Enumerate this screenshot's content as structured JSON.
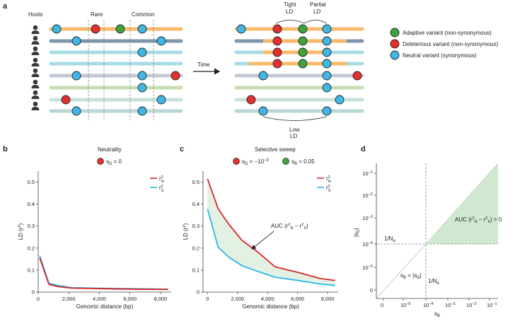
{
  "panel_a": {
    "letter": "a",
    "hosts_label": "Hosts",
    "rare_label": "Rare",
    "common_label": "Common",
    "time_label": "Time",
    "tight_ld": [
      "Tight",
      "LD"
    ],
    "partial_ld": [
      "Partial",
      "LD"
    ],
    "low_ld": [
      "Low",
      "LD"
    ],
    "legend": [
      {
        "label": "Adaptive variant (non-synonymous)",
        "color": "#3fa33f"
      },
      {
        "label": "Deleterious variant (non-synonymous)",
        "color": "#e03030"
      },
      {
        "label": "Neutral variant (synonymous)",
        "color": "#3fb6e3"
      }
    ],
    "colors": {
      "orange": "#f7b96a",
      "slate": "#8096ad",
      "lightblue": "#a7dbe4",
      "lightgreen": "#c7ddb1",
      "lightgray": "#c3c7d1",
      "mint": "#c9e1db",
      "teal": "#b9d8d5"
    }
  },
  "panel_b": {
    "letter": "b",
    "title": "Neutrality",
    "legend_text": "s",
    "legend_sub": "D",
    "legend_rest": " = 0"
  },
  "panel_c": {
    "letter": "c",
    "title": "Selective sweep",
    "legend_d_text": "s",
    "legend_d_sub": "D",
    "legend_d_rest": " = −10",
    "legend_d_exp": "−3",
    "legend_b_text": "s",
    "legend_b_sub": "B",
    "legend_b_rest": " = 0.05",
    "auc_text": "AUC (r",
    "auc_mid": " − r",
    "auc_end": ")"
  },
  "panel_d": {
    "letter": "d",
    "xlabel": "s",
    "xlabel_sub": "B",
    "ylabel": "|s",
    "ylabel_sub": "D",
    "ylabel_end": "|",
    "x_ticks": [
      {
        "base": "0"
      },
      {
        "base": "10",
        "exp": "−5"
      },
      {
        "base": "10",
        "exp": "−4"
      },
      {
        "base": "10",
        "exp": "−3"
      },
      {
        "base": "10",
        "exp": "−2"
      },
      {
        "base": "10",
        "exp": "−1"
      }
    ],
    "y_ticks": [
      {
        "base": "0"
      },
      {
        "base": "10",
        "exp": "−5"
      },
      {
        "base": "10",
        "exp": "−4"
      },
      {
        "base": "10",
        "exp": "−3"
      },
      {
        "base": "10",
        "exp": "−2"
      },
      {
        "base": "10",
        "exp": "−1"
      }
    ],
    "ne_label": "1/N",
    "ne_sub": "e",
    "diag_label_a": "s",
    "diag_label_b": " = |s",
    "diag_label_c": "|",
    "auc_label": "AUC (r",
    "auc_mid": " − r",
    "auc_end": ") > 0",
    "fill_color": "#cfe8cf"
  },
  "chart_data": [
    {
      "type": "line",
      "panel": "b",
      "title": "Neutrality",
      "xlabel": "Genomic distance (bp)",
      "ylabel": "LD (r2)",
      "xlim": [
        0,
        8700
      ],
      "ylim": [
        0,
        0.55
      ],
      "x_ticks": [
        0,
        2000,
        4000,
        6000,
        8000
      ],
      "x_tick_labels": [
        "0",
        "2,000",
        "4,000",
        "6,000",
        "8,000"
      ],
      "y_ticks": [
        0,
        0.1,
        0.2,
        0.3,
        0.4,
        0.5
      ],
      "legend": "top-right",
      "series": [
        {
          "name": "r2 N",
          "color": "#d62728",
          "x": [
            100,
            700,
            1300,
            2200,
            4500,
            6500,
            8500
          ],
          "y": [
            0.155,
            0.035,
            0.025,
            0.018,
            0.015,
            0.013,
            0.012
          ]
        },
        {
          "name": "r2 S",
          "color": "#29b6e6",
          "x": [
            100,
            700,
            1300,
            2200,
            4500,
            6500,
            8500
          ],
          "y": [
            0.165,
            0.04,
            0.03,
            0.02,
            0.017,
            0.015,
            0.013
          ]
        }
      ]
    },
    {
      "type": "line",
      "panel": "c",
      "title": "Selective sweep",
      "xlabel": "Genomic distance (bp)",
      "ylabel": "LD (r2)",
      "xlim": [
        -300,
        8700
      ],
      "ylim": [
        0,
        0.55
      ],
      "x_ticks": [
        0,
        2000,
        4000,
        6000,
        8000
      ],
      "x_tick_labels": [
        "0",
        "2,000",
        "4,000",
        "6,000",
        "8,000"
      ],
      "y_ticks": [
        0,
        0.1,
        0.2,
        0.3,
        0.4,
        0.5
      ],
      "legend": "top-right",
      "series": [
        {
          "name": "r2 N",
          "color": "#d62728",
          "x": [
            0,
            700,
            1400,
            2300,
            3300,
            4500,
            6000,
            7500,
            8500
          ],
          "y": [
            0.515,
            0.38,
            0.31,
            0.235,
            0.185,
            0.115,
            0.09,
            0.062,
            0.053
          ]
        },
        {
          "name": "r2 S",
          "color": "#29b6e6",
          "x": [
            0,
            700,
            1400,
            2300,
            3300,
            4500,
            6000,
            7500,
            8500
          ],
          "y": [
            0.378,
            0.205,
            0.16,
            0.12,
            0.095,
            0.068,
            0.053,
            0.037,
            0.03
          ]
        }
      ]
    }
  ]
}
